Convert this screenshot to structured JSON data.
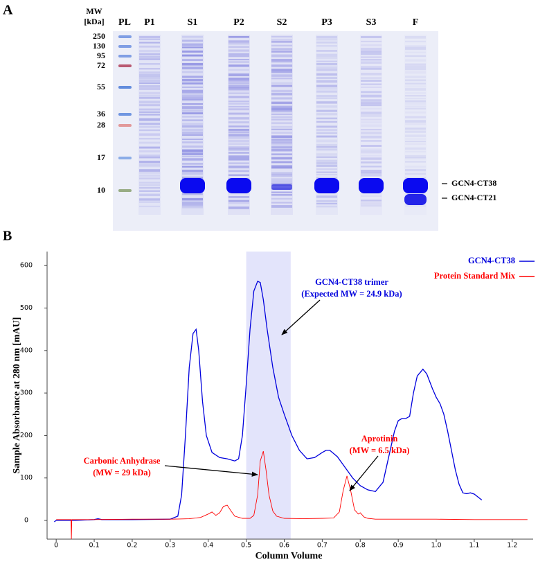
{
  "gel": {
    "panel_label": "A",
    "mw_header": [
      "MW",
      "[kDa]"
    ],
    "lanes": [
      "PL",
      "P1",
      "S1",
      "P2",
      "S2",
      "P3",
      "S3",
      "F"
    ],
    "markers": [
      250,
      130,
      95,
      72,
      55,
      36,
      28,
      17,
      10
    ],
    "band_labels": [
      "GCN4-CT38",
      "GCN4-CT21"
    ]
  },
  "chart_data": {
    "type": "line",
    "panel_label": "B",
    "x_label": "Column Volume",
    "y_label": "Sample Absorbance at 280 nm [mAU]",
    "xlim": [
      -0.024,
      1.255
    ],
    "ylim": [
      -44,
      633
    ],
    "xticks": [
      0,
      0.1,
      0.2,
      0.3,
      0.4,
      0.5,
      0.6,
      0.7,
      0.8,
      0.9,
      {
        "value": 1,
        "label": "1.0"
      },
      1.1,
      1.2
    ],
    "yticks": [
      0,
      100,
      200,
      300,
      400,
      500,
      600
    ],
    "highlight": [
      0.5,
      0.617
    ],
    "highlight_color": "#e3e4fb",
    "legend": "upper right",
    "series": [
      {
        "name": "GCN4-CT38",
        "color": "#0000dd",
        "x": [
          -0.005,
          0,
          0.05,
          0.1,
          0.11,
          0.12,
          0.2,
          0.3,
          0.32,
          0.33,
          0.34,
          0.35,
          0.36,
          0.368,
          0.375,
          0.385,
          0.395,
          0.41,
          0.43,
          0.45,
          0.47,
          0.48,
          0.49,
          0.5,
          0.51,
          0.52,
          0.53,
          0.537,
          0.545,
          0.555,
          0.57,
          0.585,
          0.6,
          0.62,
          0.64,
          0.66,
          0.68,
          0.7,
          0.71,
          0.72,
          0.74,
          0.76,
          0.78,
          0.8,
          0.82,
          0.84,
          0.86,
          0.87,
          0.88,
          0.89,
          0.9,
          0.91,
          0.92,
          0.93,
          0.94,
          0.95,
          0.965,
          0.975,
          0.99,
          1.0,
          1.01,
          1.02,
          1.03,
          1.04,
          1.05,
          1.06,
          1.07,
          1.08,
          1.09,
          1.1,
          1.11,
          1.12
        ],
        "values": [
          -3,
          0,
          0,
          2,
          4,
          2,
          2,
          3,
          10,
          60,
          200,
          360,
          440,
          450,
          400,
          280,
          200,
          160,
          148,
          145,
          140,
          145,
          200,
          320,
          450,
          540,
          563,
          560,
          520,
          450,
          360,
          290,
          250,
          200,
          165,
          145,
          148,
          160,
          165,
          165,
          150,
          125,
          100,
          82,
          72,
          68,
          90,
          130,
          170,
          210,
          235,
          240,
          240,
          245,
          300,
          340,
          356,
          345,
          310,
          290,
          275,
          250,
          210,
          165,
          120,
          85,
          65,
          63,
          65,
          62,
          55,
          48
        ]
      },
      {
        "name": "Protein Standard Mix",
        "color": "#ff0000",
        "x": [
          0,
          0.039,
          0.04,
          0.041,
          0.1,
          0.2,
          0.3,
          0.35,
          0.38,
          0.4,
          0.41,
          0.42,
          0.43,
          0.44,
          0.45,
          0.46,
          0.47,
          0.49,
          0.51,
          0.52,
          0.53,
          0.537,
          0.545,
          0.552,
          0.56,
          0.57,
          0.58,
          0.6,
          0.65,
          0.7,
          0.73,
          0.745,
          0.755,
          0.765,
          0.775,
          0.785,
          0.795,
          0.8,
          0.81,
          0.82,
          0.84,
          0.9,
          1.0,
          1.1,
          1.2,
          1.24
        ],
        "values": [
          2,
          2,
          -44,
          2,
          2,
          3,
          3,
          4,
          7,
          15,
          20,
          12,
          18,
          33,
          36,
          22,
          10,
          5,
          5,
          12,
          60,
          140,
          163,
          120,
          60,
          22,
          10,
          5,
          4,
          5,
          6,
          20,
          70,
          105,
          70,
          25,
          15,
          18,
          8,
          5,
          3,
          3,
          3,
          2,
          2,
          2
        ]
      }
    ],
    "annotations": [
      {
        "lines": [
          "GCN4-CT38 trimer",
          "(Expected MW = 24.9 kDa)"
        ],
        "color": "#0000dd"
      },
      {
        "lines": [
          "Carbonic Anhydrase",
          "(MW = 29 kDa)"
        ],
        "color": "#ff0000"
      },
      {
        "lines": [
          "Aprotinin",
          "(MW = 6.5 kDa)"
        ],
        "color": "#ff0000"
      }
    ]
  }
}
